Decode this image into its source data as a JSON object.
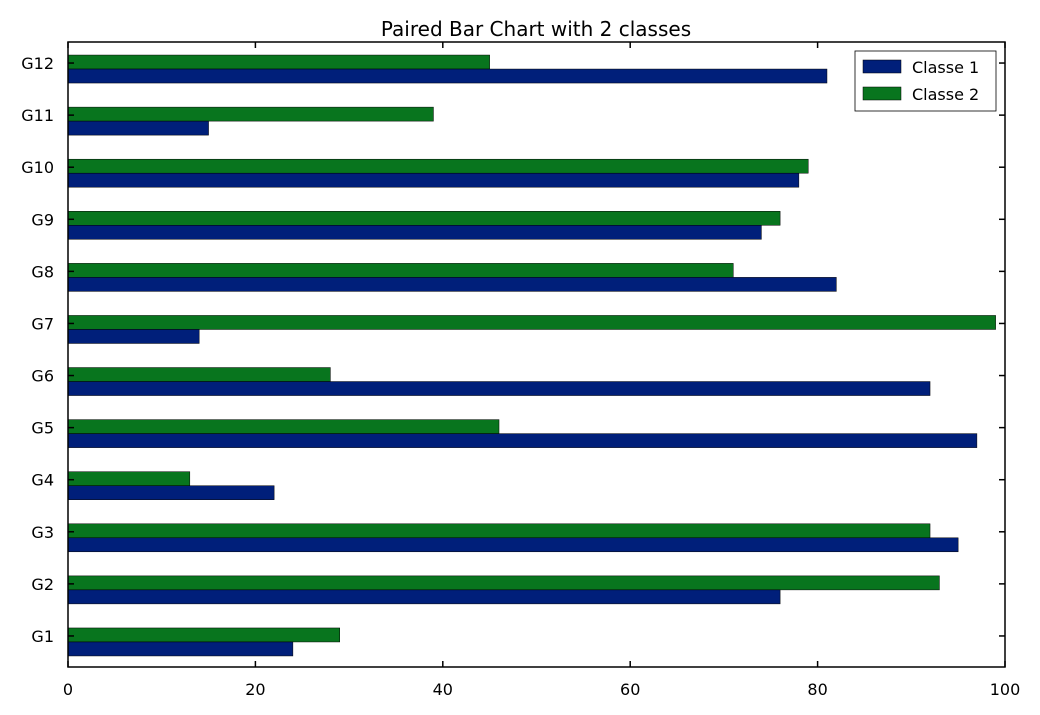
{
  "chart_data": {
    "type": "bar",
    "orientation": "horizontal",
    "title": "Paired Bar Chart with 2 classes",
    "xlabel": "",
    "ylabel": "",
    "xlim": [
      0,
      100
    ],
    "x_ticks": [
      "0",
      "20",
      "40",
      "60",
      "80",
      "100"
    ],
    "categories": [
      "G1",
      "G2",
      "G3",
      "G4",
      "G5",
      "G6",
      "G7",
      "G8",
      "G9",
      "G10",
      "G11",
      "G12"
    ],
    "series": [
      {
        "name": "Classe 1",
        "color": "#001f7a",
        "values": [
          24,
          76,
          95,
          22,
          97,
          92,
          14,
          82,
          74,
          78,
          15,
          81
        ]
      },
      {
        "name": "Classe 2",
        "color": "#08751e",
        "values": [
          29,
          93,
          92,
          13,
          46,
          28,
          99,
          71,
          76,
          79,
          39,
          45
        ]
      }
    ],
    "legend_position": "top-right",
    "grid": false
  }
}
